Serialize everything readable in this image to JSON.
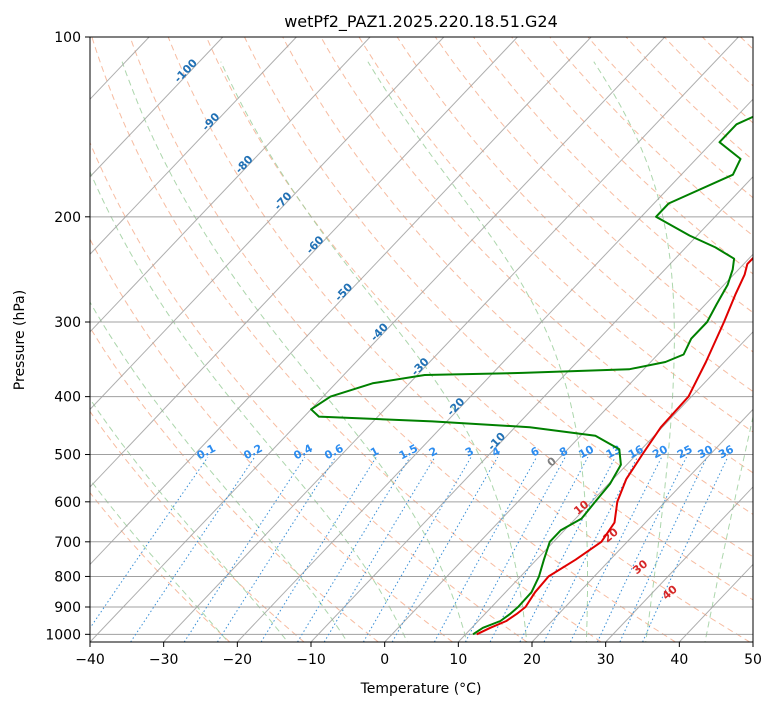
{
  "chart_data": {
    "type": "line",
    "subtype": "skew-t log-p",
    "title": "wetPf2_PAZ1.2025.220.18.51.G24",
    "xlabel": "Temperature (°C)",
    "ylabel": "Pressure (hPa)",
    "xlim": [
      -40,
      50
    ],
    "ylim": [
      1030,
      100
    ],
    "y_scale": "log",
    "grid": true,
    "x_ticks": [
      -40,
      -30,
      -20,
      -10,
      0,
      10,
      20,
      30,
      40,
      50
    ],
    "x_tick_labels": [
      "−40",
      "−30",
      "−20",
      "−10",
      "0",
      "10",
      "20",
      "30",
      "40",
      "50"
    ],
    "y_ticks": [
      1000,
      900,
      800,
      700,
      600,
      500,
      400,
      300,
      200,
      100
    ],
    "y_tick_labels": [
      "1000",
      "900",
      "800",
      "700",
      "600",
      "500",
      "400",
      "300",
      "200",
      "100"
    ],
    "colors": {
      "temperature": "#e00000",
      "dewpoint": "#008000",
      "isotherms": "#a0a0a0",
      "dry_adiabats": "#f4a582",
      "moist_adiabats": "#9ecf9e",
      "mixing_ratio": "#3a8fd6",
      "isotherm_labels": "#2171b5",
      "mixing_ratio_labels": "#2b8cf0",
      "lifted_labels": "#d62728",
      "lifted_zero_label": "#7f7f7f"
    },
    "series": [
      {
        "role": "temperature",
        "points": [
          {
            "p": 1000,
            "t": 11.5
          },
          {
            "p": 975,
            "t": 12.5
          },
          {
            "p": 950,
            "t": 13.8
          },
          {
            "p": 925,
            "t": 14.3
          },
          {
            "p": 900,
            "t": 14.6
          },
          {
            "p": 850,
            "t": 14.0
          },
          {
            "p": 800,
            "t": 13.8
          },
          {
            "p": 750,
            "t": 15.3
          },
          {
            "p": 700,
            "t": 16.5
          },
          {
            "p": 650,
            "t": 15.8
          },
          {
            "p": 600,
            "t": 13.5
          },
          {
            "p": 550,
            "t": 11.8
          },
          {
            "p": 500,
            "t": 10.8
          },
          {
            "p": 450,
            "t": 9.8
          },
          {
            "p": 400,
            "t": 9.6
          },
          {
            "p": 350,
            "t": 7.5
          },
          {
            "p": 300,
            "t": 4.8
          },
          {
            "p": 270,
            "t": 2.8
          },
          {
            "p": 250,
            "t": 1.5
          },
          {
            "p": 240,
            "t": 0.5
          },
          {
            "p": 232,
            "t": 0.5
          },
          {
            "p": 225,
            "t": 3.0
          },
          {
            "p": 215,
            "t": 6.0
          },
          {
            "p": 205,
            "t": 8.0
          },
          {
            "p": 195,
            "t": 9.0
          },
          {
            "p": 180,
            "t": 9.5
          },
          {
            "p": 160,
            "t": 11.0
          },
          {
            "p": 145,
            "t": 14.0
          },
          {
            "p": 130,
            "t": 16.5
          },
          {
            "p": 115,
            "t": 18.0
          },
          {
            "p": 100,
            "t": 20.0
          }
        ]
      },
      {
        "role": "dewpoint",
        "points": [
          {
            "p": 1000,
            "t": 11.0
          },
          {
            "p": 975,
            "t": 11.5
          },
          {
            "p": 950,
            "t": 13.0
          },
          {
            "p": 925,
            "t": 13.4
          },
          {
            "p": 900,
            "t": 13.6
          },
          {
            "p": 850,
            "t": 13.5
          },
          {
            "p": 800,
            "t": 12.5
          },
          {
            "p": 750,
            "t": 11.0
          },
          {
            "p": 700,
            "t": 9.5
          },
          {
            "p": 670,
            "t": 9.5
          },
          {
            "p": 640,
            "t": 10.8
          },
          {
            "p": 600,
            "t": 10.5
          },
          {
            "p": 560,
            "t": 10.2
          },
          {
            "p": 520,
            "t": 9.2
          },
          {
            "p": 490,
            "t": 7.0
          },
          {
            "p": 465,
            "t": 2.0
          },
          {
            "p": 450,
            "t": -8.0
          },
          {
            "p": 440,
            "t": -22.0
          },
          {
            "p": 432,
            "t": -38.0
          },
          {
            "p": 420,
            "t": -40.0
          },
          {
            "p": 400,
            "t": -39.0
          },
          {
            "p": 380,
            "t": -35.0
          },
          {
            "p": 368,
            "t": -29.0
          },
          {
            "p": 365,
            "t": -16.0
          },
          {
            "p": 360,
            "t": -2.0
          },
          {
            "p": 350,
            "t": 2.0
          },
          {
            "p": 340,
            "t": 3.5
          },
          {
            "p": 320,
            "t": 2.5
          },
          {
            "p": 300,
            "t": 2.5
          },
          {
            "p": 280,
            "t": 1.5
          },
          {
            "p": 260,
            "t": 0.5
          },
          {
            "p": 245,
            "t": -0.8
          },
          {
            "p": 235,
            "t": -2.0
          },
          {
            "p": 225,
            "t": -6.0
          },
          {
            "p": 215,
            "t": -11.0
          },
          {
            "p": 200,
            "t": -18.0
          },
          {
            "p": 190,
            "t": -18.0
          },
          {
            "p": 170,
            "t": -13.0
          },
          {
            "p": 160,
            "t": -14.0
          },
          {
            "p": 150,
            "t": -19.0
          },
          {
            "p": 140,
            "t": -19.0
          },
          {
            "p": 125,
            "t": -14.0
          },
          {
            "p": 110,
            "t": -10.0
          },
          {
            "p": 100,
            "t": -7.0
          }
        ]
      }
    ],
    "isotherm_labels": [
      {
        "t": -100,
        "p": 115
      },
      {
        "t": -90,
        "p": 140
      },
      {
        "t": -80,
        "p": 165
      },
      {
        "t": -70,
        "p": 190
      },
      {
        "t": -60,
        "p": 225
      },
      {
        "t": -50,
        "p": 270
      },
      {
        "t": -40,
        "p": 315
      },
      {
        "t": -30,
        "p": 360
      },
      {
        "t": -20,
        "p": 420
      },
      {
        "t": -10,
        "p": 480
      }
    ],
    "isotherm_label_text": [
      "-100",
      "-90",
      "-80",
      "-70",
      "-60",
      "-50",
      "-40",
      "-30",
      "-20",
      "-10"
    ],
    "mixing_ratio_values": [
      0.1,
      0.2,
      0.4,
      0.6,
      1,
      1.5,
      2,
      3,
      4,
      6,
      8,
      10,
      13,
      16,
      20,
      25,
      30,
      36
    ],
    "mixing_ratio_label_text": [
      "0.1",
      "0.2",
      "0.4",
      "0.6",
      "1",
      "1.5",
      "2",
      "3",
      "4",
      "6",
      "8",
      "10",
      "13",
      "16",
      "20",
      "25",
      "30",
      "36"
    ],
    "lifted_labels": [
      {
        "text": "0",
        "t": 23,
        "p": 520
      },
      {
        "text": "10",
        "t": 27,
        "p": 620
      },
      {
        "text": "20",
        "t": 31,
        "p": 690
      },
      {
        "text": "30",
        "t": 35,
        "p": 780
      },
      {
        "text": "40",
        "t": 39,
        "p": 860
      }
    ]
  }
}
